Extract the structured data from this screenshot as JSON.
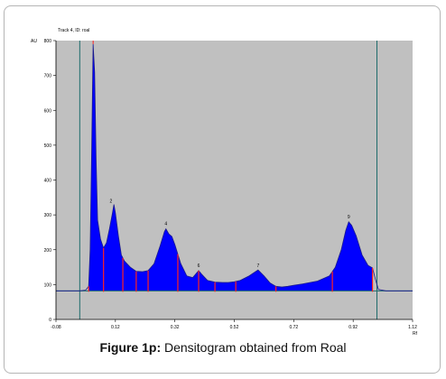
{
  "figure": {
    "caption_label": "Figure 1p:",
    "caption_text": "Densitogram obtained from Roal"
  },
  "chart_data": {
    "type": "area",
    "title": "Track 4, ID: roal",
    "ylabel": "AU",
    "xlabel": "Rf",
    "xlim": [
      -0.08,
      1.12
    ],
    "ylim": [
      0,
      800
    ],
    "y_ticks": [
      "0",
      "100",
      "200",
      "300",
      "400",
      "500",
      "600",
      "700",
      "800"
    ],
    "x_ticks": [
      {
        "value": -0.08,
        "label": "-0.08"
      },
      {
        "value": 0.12,
        "label": "0.12"
      },
      {
        "value": 0.32,
        "label": "0.32"
      },
      {
        "value": 0.52,
        "label": "0.52"
      },
      {
        "value": 0.72,
        "label": "0.72"
      },
      {
        "value": 0.92,
        "label": "0.92"
      },
      {
        "value": 1.12,
        "label": "1.12"
      }
    ],
    "baseline": 82,
    "start_line": 0.0,
    "end_line": 1.0,
    "peak_labels": [
      {
        "label": "2",
        "x": 0.105,
        "y": 325
      },
      {
        "label": "4",
        "x": 0.29,
        "y": 260
      },
      {
        "label": "6",
        "x": 0.4,
        "y": 140
      },
      {
        "label": "7",
        "x": 0.6,
        "y": 140
      },
      {
        "label": "9",
        "x": 0.905,
        "y": 280
      }
    ],
    "peak_bounds": [
      0.03,
      0.08,
      0.145,
      0.19,
      0.23,
      0.33,
      0.4,
      0.455,
      0.525,
      0.66,
      0.85,
      0.985
    ],
    "series": [
      {
        "profile": [
          [
            -0.08,
            82
          ],
          [
            0.0,
            82
          ],
          [
            0.02,
            84
          ],
          [
            0.03,
            95
          ],
          [
            0.035,
            200
          ],
          [
            0.04,
            480
          ],
          [
            0.045,
            790
          ],
          [
            0.05,
            710
          ],
          [
            0.055,
            460
          ],
          [
            0.06,
            285
          ],
          [
            0.07,
            230
          ],
          [
            0.08,
            205
          ],
          [
            0.09,
            220
          ],
          [
            0.1,
            260
          ],
          [
            0.11,
            305
          ],
          [
            0.115,
            330
          ],
          [
            0.12,
            305
          ],
          [
            0.13,
            240
          ],
          [
            0.14,
            185
          ],
          [
            0.15,
            168
          ],
          [
            0.17,
            150
          ],
          [
            0.19,
            138
          ],
          [
            0.21,
            137
          ],
          [
            0.23,
            140
          ],
          [
            0.25,
            160
          ],
          [
            0.27,
            210
          ],
          [
            0.285,
            252
          ],
          [
            0.29,
            260
          ],
          [
            0.3,
            245
          ],
          [
            0.31,
            238
          ],
          [
            0.32,
            215
          ],
          [
            0.34,
            160
          ],
          [
            0.36,
            125
          ],
          [
            0.38,
            120
          ],
          [
            0.395,
            135
          ],
          [
            0.4,
            140
          ],
          [
            0.41,
            130
          ],
          [
            0.43,
            112
          ],
          [
            0.455,
            107
          ],
          [
            0.48,
            106
          ],
          [
            0.5,
            106
          ],
          [
            0.52,
            108
          ],
          [
            0.54,
            112
          ],
          [
            0.57,
            125
          ],
          [
            0.6,
            142
          ],
          [
            0.62,
            125
          ],
          [
            0.64,
            105
          ],
          [
            0.66,
            95
          ],
          [
            0.68,
            93
          ],
          [
            0.7,
            95
          ],
          [
            0.72,
            98
          ],
          [
            0.75,
            102
          ],
          [
            0.8,
            110
          ],
          [
            0.84,
            125
          ],
          [
            0.86,
            150
          ],
          [
            0.88,
            200
          ],
          [
            0.895,
            255
          ],
          [
            0.905,
            280
          ],
          [
            0.915,
            270
          ],
          [
            0.93,
            240
          ],
          [
            0.95,
            185
          ],
          [
            0.97,
            155
          ],
          [
            0.985,
            148
          ],
          [
            0.995,
            115
          ],
          [
            1.005,
            86
          ],
          [
            1.03,
            82
          ],
          [
            1.12,
            82
          ]
        ]
      }
    ]
  }
}
